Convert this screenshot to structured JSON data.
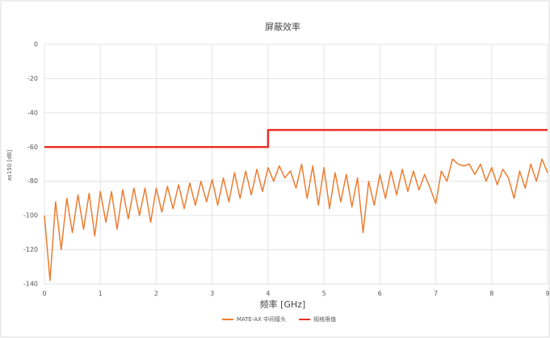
{
  "chart_data": {
    "type": "line",
    "title": "屏蔽效率",
    "xlabel": "频率 [GHz]",
    "ylabel": "as150 [dB]",
    "xlim": [
      0,
      9
    ],
    "xticks": [
      0,
      1,
      2,
      3,
      4,
      5,
      6,
      7,
      8,
      9
    ],
    "ylim": [
      -140,
      0
    ],
    "yticks": [
      0,
      -20,
      -40,
      -60,
      -80,
      -100,
      -120,
      -140
    ],
    "grid": true,
    "legend": "bottom",
    "series": [
      {
        "name": "MATE-AX 中间接头",
        "color": "#ed7d31",
        "x": [
          0,
          0.1,
          0.2,
          0.3,
          0.4,
          0.5,
          0.6,
          0.7,
          0.8,
          0.9,
          1.0,
          1.1,
          1.2,
          1.3,
          1.4,
          1.5,
          1.6,
          1.7,
          1.8,
          1.9,
          2.0,
          2.1,
          2.2,
          2.3,
          2.4,
          2.5,
          2.6,
          2.7,
          2.8,
          2.9,
          3.0,
          3.1,
          3.2,
          3.3,
          3.4,
          3.5,
          3.6,
          3.7,
          3.8,
          3.9,
          4.0,
          4.1,
          4.2,
          4.3,
          4.4,
          4.5,
          4.6,
          4.7,
          4.8,
          4.9,
          5.0,
          5.1,
          5.2,
          5.3,
          5.4,
          5.5,
          5.6,
          5.7,
          5.8,
          5.9,
          6.0,
          6.1,
          6.2,
          6.3,
          6.4,
          6.5,
          6.6,
          6.7,
          6.8,
          6.9,
          7.0,
          7.1,
          7.2,
          7.3,
          7.4,
          7.5,
          7.6,
          7.7,
          7.8,
          7.9,
          8.0,
          8.1,
          8.2,
          8.3,
          8.4,
          8.5,
          8.6,
          8.7,
          8.8,
          8.9,
          9.0
        ],
        "values": [
          -100,
          -138,
          -92,
          -120,
          -90,
          -110,
          -88,
          -108,
          -87,
          -112,
          -86,
          -104,
          -86,
          -108,
          -85,
          -102,
          -84,
          -100,
          -84,
          -104,
          -84,
          -98,
          -83,
          -96,
          -82,
          -96,
          -81,
          -94,
          -80,
          -92,
          -79,
          -94,
          -78,
          -92,
          -75,
          -90,
          -74,
          -88,
          -73,
          -86,
          -72,
          -80,
          -71,
          -78,
          -74,
          -84,
          -70,
          -90,
          -71,
          -94,
          -72,
          -96,
          -75,
          -92,
          -76,
          -95,
          -78,
          -110,
          -80,
          -94,
          -76,
          -90,
          -74,
          -88,
          -73,
          -86,
          -74,
          -85,
          -76,
          -84,
          -93,
          -74,
          -80,
          -67,
          -70,
          -71,
          -70,
          -76,
          -70,
          -80,
          -72,
          -82,
          -73,
          -78,
          -90,
          -74,
          -84,
          -70,
          -80,
          -67,
          -75
        ]
      },
      {
        "name": "规格限值",
        "color": "#e8302a",
        "x": [
          0,
          4,
          4,
          9
        ],
        "values": [
          -60,
          -60,
          -50,
          -50
        ]
      }
    ]
  }
}
